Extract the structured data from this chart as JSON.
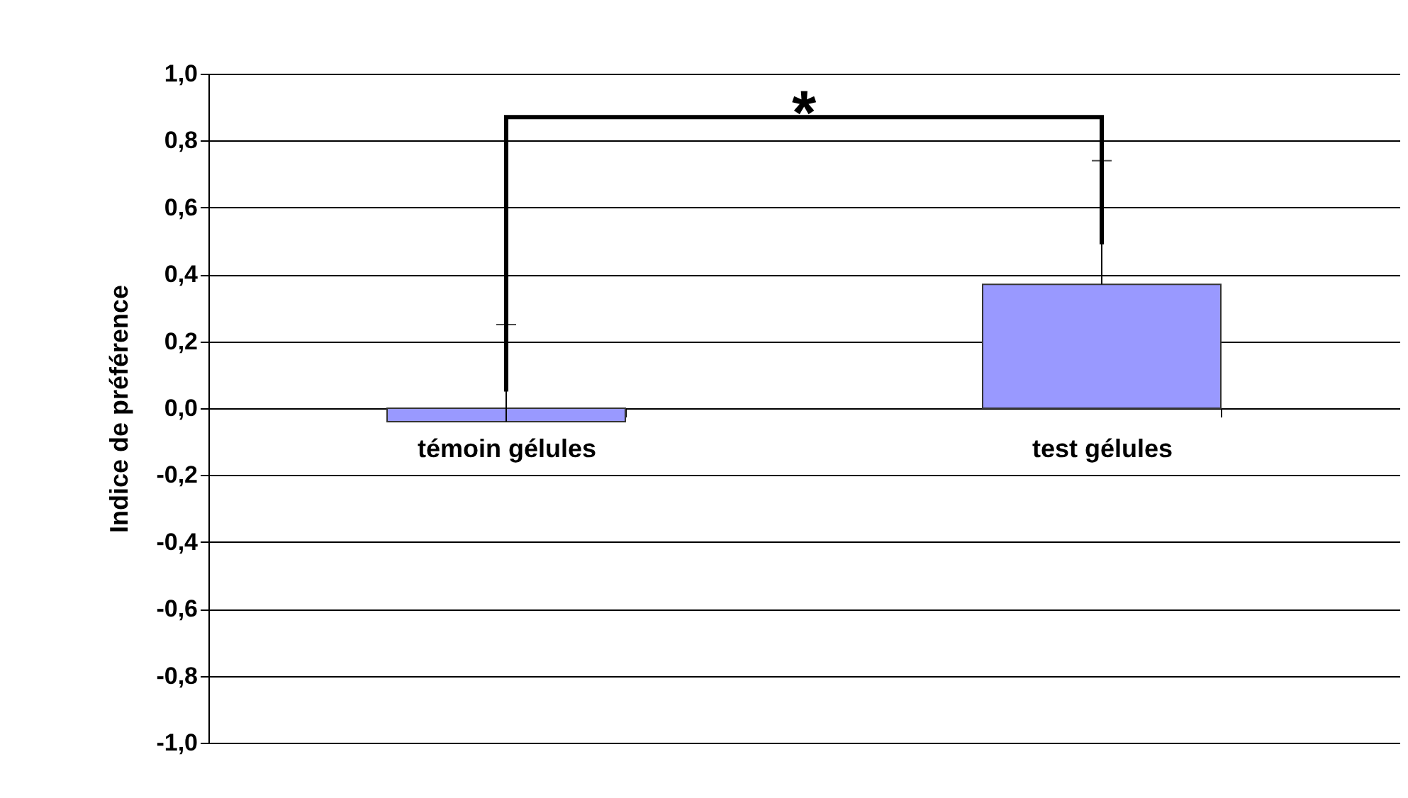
{
  "chart_data": {
    "type": "bar",
    "ylabel": "Indice de préférence",
    "categories": [
      "témoin gélules",
      "test gélules"
    ],
    "values": [
      -0.04,
      0.37
    ],
    "color": "#9999ff",
    "errors": [
      [
        -0.04,
        0.25
      ],
      [
        0.37,
        0.74
      ]
    ],
    "ylim": [
      -1,
      1
    ],
    "yticks": [
      {
        "value": -1,
        "label": "-1,0"
      },
      {
        "value": -0.8,
        "label": "-0,8"
      },
      {
        "value": -0.6,
        "label": "-0,6"
      },
      {
        "value": -0.4,
        "label": "-0,4"
      },
      {
        "value": -0.2,
        "label": "-0,2"
      },
      {
        "value": 0,
        "label": "0,0"
      },
      {
        "value": 0.2,
        "label": "0,2"
      },
      {
        "value": 0.4,
        "label": "0,4"
      },
      {
        "value": 0.6,
        "label": "0,6"
      },
      {
        "value": 0.8,
        "label": "0,8"
      },
      {
        "value": 1,
        "label": "1,0"
      }
    ],
    "grid": "y",
    "annotations": [
      "*"
    ]
  }
}
